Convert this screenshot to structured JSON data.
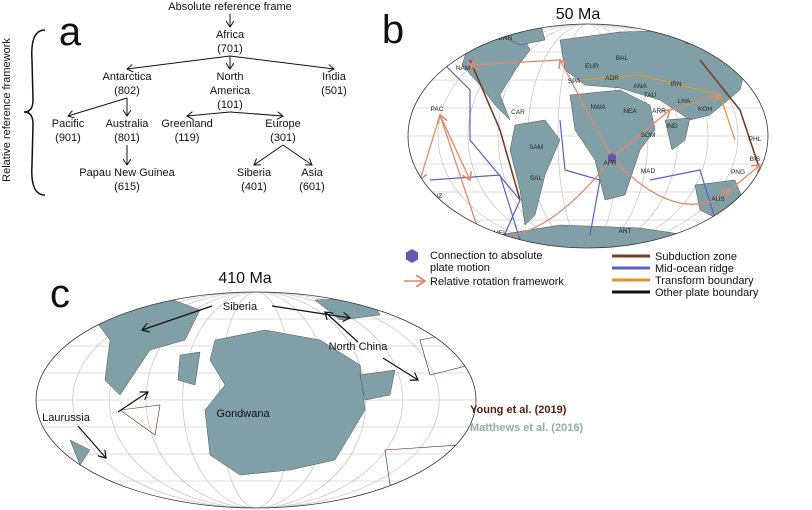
{
  "panel_a": {
    "letter": "a",
    "root": "Absolute reference frame",
    "side_label": "Relative reference framework",
    "nodes": [
      {
        "lines": [
          "Africa",
          "(701)"
        ]
      },
      {
        "lines": [
          "Antarctica",
          "(802)"
        ]
      },
      {
        "lines": [
          "North",
          "America",
          "(101)"
        ]
      },
      {
        "lines": [
          "India",
          "(501)"
        ]
      },
      {
        "lines": [
          "Pacific",
          "(901)"
        ]
      },
      {
        "lines": [
          "Australia",
          "(801)"
        ]
      },
      {
        "lines": [
          "Greenland",
          "(119)"
        ]
      },
      {
        "lines": [
          "Europe",
          "(301)"
        ]
      },
      {
        "lines": [
          "Papau New Guinea",
          "(615)"
        ]
      },
      {
        "lines": [
          "Siberia",
          "(401)"
        ]
      },
      {
        "lines": [
          "Asia",
          "(601)"
        ]
      }
    ]
  },
  "panel_b": {
    "letter": "b",
    "title": "50 Ma",
    "map_labels": [
      "GRN",
      "SIB",
      "NAM",
      "BAL",
      "EUR",
      "JAP",
      "SPA",
      "ADR",
      "ANA",
      "IRN",
      "TAU",
      "LHA",
      "KOH",
      "IND",
      "PAC",
      "CAR",
      "NWA",
      "NEA",
      "ARR",
      "SOM",
      "SAM",
      "AFR",
      "MAD",
      "PHL",
      "BIS",
      "PNG",
      "NZ",
      "SAL",
      "AUS",
      "LHR",
      "MEL",
      "ANT"
    ],
    "legend": {
      "connection": [
        "Connection to absolute",
        "plate motion"
      ],
      "connection_color": "#6b55b0",
      "rotation": "Relative rotation framework",
      "rotation_color": "#e0896a",
      "boundaries": [
        {
          "name": "Subduction zone",
          "color": "#7a3d22"
        },
        {
          "name": "Mid-ocean ridge",
          "color": "#5b5fc7"
        },
        {
          "name": "Transform boundary",
          "color": "#d9962e"
        },
        {
          "name": "Other plate boundary",
          "color": "#111111"
        }
      ]
    }
  },
  "panel_c": {
    "letter": "c",
    "title": "410 Ma",
    "labels": [
      "Siberia",
      "North China",
      "Laurussia",
      "Gondwana"
    ],
    "sources": [
      {
        "name": "Young et al. (2019)",
        "color": "#5a1c0c"
      },
      {
        "name": "Matthews et al. (2016)",
        "color": "#93abb3"
      }
    ]
  }
}
